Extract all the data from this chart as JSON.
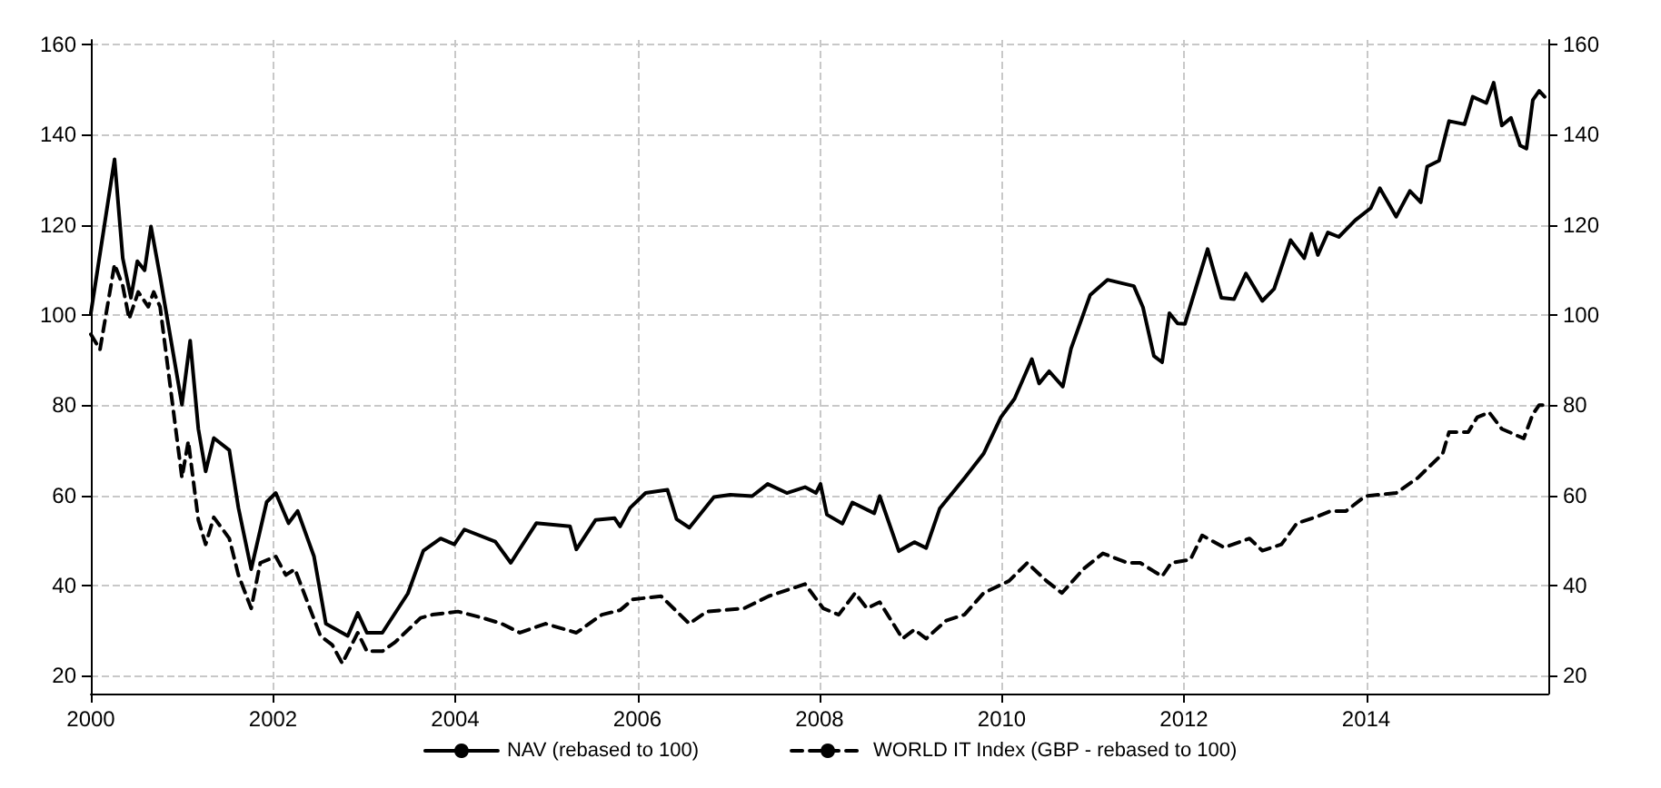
{
  "chart_data": {
    "type": "line",
    "xlim": [
      2000,
      2016
    ],
    "xticks": [
      2000,
      2002,
      2004,
      2006,
      2008,
      2010,
      2012,
      2014
    ],
    "ylim": [
      16,
      161
    ],
    "yticks": [
      20,
      40,
      60,
      80,
      100,
      120,
      140,
      160
    ],
    "y2lim": [
      16,
      161
    ],
    "y2ticks": [
      20,
      40,
      60,
      80,
      100,
      120,
      140,
      160
    ],
    "grid": true,
    "legend": "bottom",
    "marker": "none",
    "series": [
      {
        "name": "NAV (rebased to 100)",
        "color": "#000000",
        "line_style": "solid",
        "x": [
          2000.0,
          2000.26,
          2000.35,
          2000.44,
          2000.51,
          2000.59,
          2000.66,
          2000.76,
          2001.0,
          2001.09,
          2001.18,
          2001.26,
          2001.35,
          2001.52,
          2001.62,
          2001.76,
          2001.93,
          2002.03,
          2002.17,
          2002.27,
          2002.45,
          2002.58,
          2002.82,
          2002.93,
          2003.03,
          2003.2,
          2003.48,
          2003.65,
          2003.84,
          2003.99,
          2004.1,
          2004.44,
          2004.61,
          2004.89,
          2005.26,
          2005.33,
          2005.54,
          2005.75,
          2005.81,
          2005.92,
          2006.09,
          2006.33,
          2006.43,
          2006.57,
          2006.84,
          2007.02,
          2007.26,
          2007.43,
          2007.64,
          2007.84,
          2007.96,
          2008.01,
          2008.08,
          2008.25,
          2008.36,
          2008.6,
          2008.66,
          2008.87,
          2009.04,
          2009.17,
          2009.32,
          2009.59,
          2009.8,
          2009.99,
          2010.14,
          2010.33,
          2010.41,
          2010.52,
          2010.67,
          2010.76,
          2010.97,
          2011.16,
          2011.45,
          2011.55,
          2011.67,
          2011.76,
          2011.84,
          2011.93,
          2012.01,
          2012.26,
          2012.41,
          2012.55,
          2012.68,
          2012.86,
          2012.99,
          2013.17,
          2013.32,
          2013.4,
          2013.47,
          2013.58,
          2013.7,
          2013.88,
          2014.05,
          2014.15,
          2014.33,
          2014.48,
          2014.6,
          2014.67,
          2014.8,
          2014.91,
          2015.08,
          2015.17,
          2015.32,
          2015.4,
          2015.49,
          2015.59,
          2015.69,
          2015.76,
          2015.83,
          2015.9,
          2015.96
        ],
        "values": [
          100.4,
          134.5,
          112.6,
          103.8,
          111.9,
          109.9,
          119.6,
          108.5,
          80.1,
          94.3,
          74.7,
          65.3,
          72.7,
          70.0,
          57.2,
          43.6,
          58.5,
          60.5,
          53.8,
          56.5,
          46.4,
          31.5,
          28.8,
          33.9,
          29.5,
          29.5,
          38.2,
          47.7,
          50.4,
          49.1,
          52.4,
          49.7,
          45.0,
          53.8,
          53.1,
          48.0,
          54.5,
          54.9,
          53.1,
          57.2,
          60.5,
          61.2,
          54.7,
          52.8,
          59.6,
          60.1,
          59.8,
          62.5,
          60.5,
          61.8,
          60.5,
          62.5,
          55.7,
          53.7,
          58.4,
          56.0,
          59.8,
          47.6,
          49.6,
          48.3,
          57.1,
          63.8,
          69.2,
          77.3,
          81.4,
          90.2,
          84.8,
          87.5,
          84.1,
          92.5,
          104.4,
          107.8,
          106.4,
          101.7,
          90.9,
          89.5,
          100.4,
          98.1,
          98.0,
          114.6,
          103.8,
          103.5,
          109.2,
          103.1,
          105.8,
          116.6,
          112.6,
          118.0,
          113.3,
          118.3,
          117.3,
          121.0,
          123.7,
          128.1,
          121.8,
          127.5,
          125.0,
          132.9,
          134.2,
          143.0,
          142.3,
          148.4,
          147.0,
          151.5,
          142.0,
          143.7,
          137.6,
          136.9,
          147.7,
          149.7,
          148.4
        ]
      },
      {
        "name": "WORLD IT Index (GBP - rebased to 100)",
        "color": "#000000",
        "line_style": "dashed",
        "x": [
          2000.0,
          2000.1,
          2000.26,
          2000.35,
          2000.42,
          2000.52,
          2000.63,
          2000.69,
          2000.76,
          2001.0,
          2001.07,
          2001.18,
          2001.26,
          2001.35,
          2001.52,
          2001.62,
          2001.76,
          2001.86,
          2002.03,
          2002.14,
          2002.24,
          2002.52,
          2002.65,
          2002.76,
          2002.93,
          2003.03,
          2003.2,
          2003.34,
          2003.62,
          2003.75,
          2004.03,
          2004.3,
          2004.51,
          2004.71,
          2004.99,
          2005.33,
          2005.61,
          2005.81,
          2005.95,
          2006.26,
          2006.57,
          2006.76,
          2007.17,
          2007.44,
          2007.84,
          2008.04,
          2008.21,
          2008.39,
          2008.52,
          2008.66,
          2008.91,
          2009.04,
          2009.17,
          2009.39,
          2009.59,
          2009.8,
          2010.08,
          2010.28,
          2010.49,
          2010.66,
          2010.9,
          2011.11,
          2011.38,
          2011.52,
          2011.76,
          2011.86,
          2012.07,
          2012.2,
          2012.44,
          2012.72,
          2012.86,
          2013.07,
          2013.24,
          2013.44,
          2013.61,
          2013.78,
          2013.99,
          2014.33,
          2014.57,
          2014.67,
          2014.84,
          2014.91,
          2015.12,
          2015.22,
          2015.35,
          2015.49,
          2015.73,
          2015.83,
          2015.9,
          2015.96
        ],
        "values": [
          95.7,
          92.3,
          111.2,
          106.5,
          99.1,
          105.1,
          101.8,
          105.1,
          101.8,
          63.9,
          72.0,
          54.5,
          49.1,
          55.1,
          50.4,
          42.3,
          34.9,
          45.0,
          46.4,
          42.3,
          43.6,
          28.8,
          26.8,
          22.7,
          29.5,
          25.4,
          25.4,
          27.4,
          32.8,
          33.5,
          34.2,
          32.8,
          31.5,
          29.5,
          31.5,
          29.5,
          33.5,
          34.5,
          36.9,
          37.6,
          31.5,
          34.2,
          34.9,
          37.6,
          40.3,
          34.9,
          33.5,
          38.3,
          34.9,
          36.3,
          28.2,
          30.2,
          28.2,
          32.2,
          33.5,
          38.3,
          41.0,
          45.0,
          41.0,
          38.3,
          43.7,
          47.1,
          45.0,
          45.0,
          42.0,
          45.0,
          45.7,
          51.1,
          48.4,
          50.4,
          47.7,
          49.1,
          53.8,
          55.1,
          56.5,
          56.5,
          59.8,
          60.5,
          63.9,
          65.9,
          69.2,
          74.0,
          74.0,
          77.3,
          78.4,
          74.7,
          72.6,
          78.0,
          80.0,
          80.0
        ]
      }
    ]
  }
}
